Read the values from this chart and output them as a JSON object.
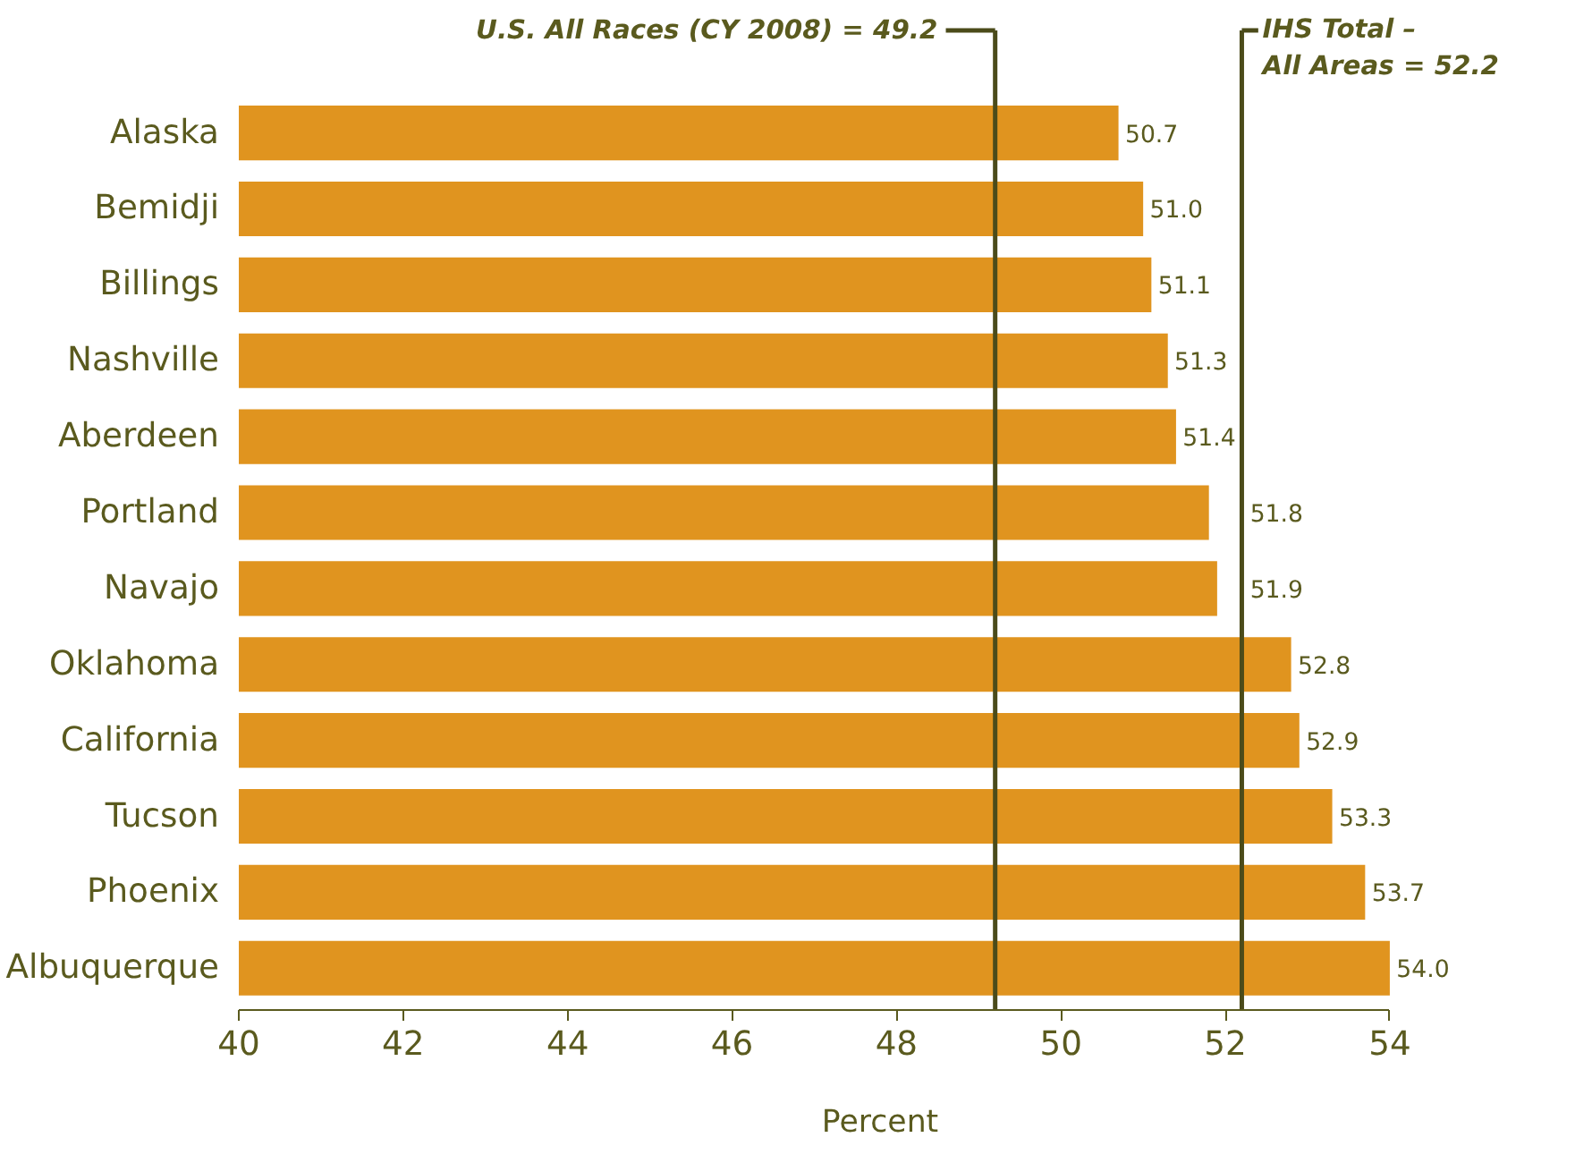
{
  "chart_data": {
    "type": "bar",
    "orientation": "horizontal",
    "xlabel": "Percent",
    "categories": [
      "Alaska",
      "Bemidji",
      "Billings",
      "Nashville",
      "Aberdeen",
      "Portland",
      "Navajo",
      "Oklahoma",
      "California",
      "Tucson",
      "Phoenix",
      "Albuquerque"
    ],
    "values": [
      50.7,
      51.0,
      51.1,
      51.3,
      51.4,
      51.8,
      51.9,
      52.8,
      52.9,
      53.3,
      53.7,
      54.0
    ],
    "color": "#e0941f",
    "value_labels": [
      "50.7",
      "51.0",
      "51.1",
      "51.3",
      "51.4",
      "51.8",
      "51.9",
      "52.8",
      "52.9",
      "53.3",
      "53.7",
      "54.0"
    ],
    "xlim": [
      40,
      54
    ],
    "xticks": [
      40,
      42,
      44,
      46,
      48,
      50,
      52,
      54
    ],
    "grid": false,
    "ref_lines": [
      {
        "axis": "x",
        "value": 49.2,
        "label": "U.S. All Races (CY 2008) = 49.2",
        "color": "#4b4b1a"
      },
      {
        "axis": "x",
        "value": 52.2,
        "label": "IHS Total –\nAll Areas = 52.2",
        "color": "#4b4b1a"
      }
    ]
  }
}
